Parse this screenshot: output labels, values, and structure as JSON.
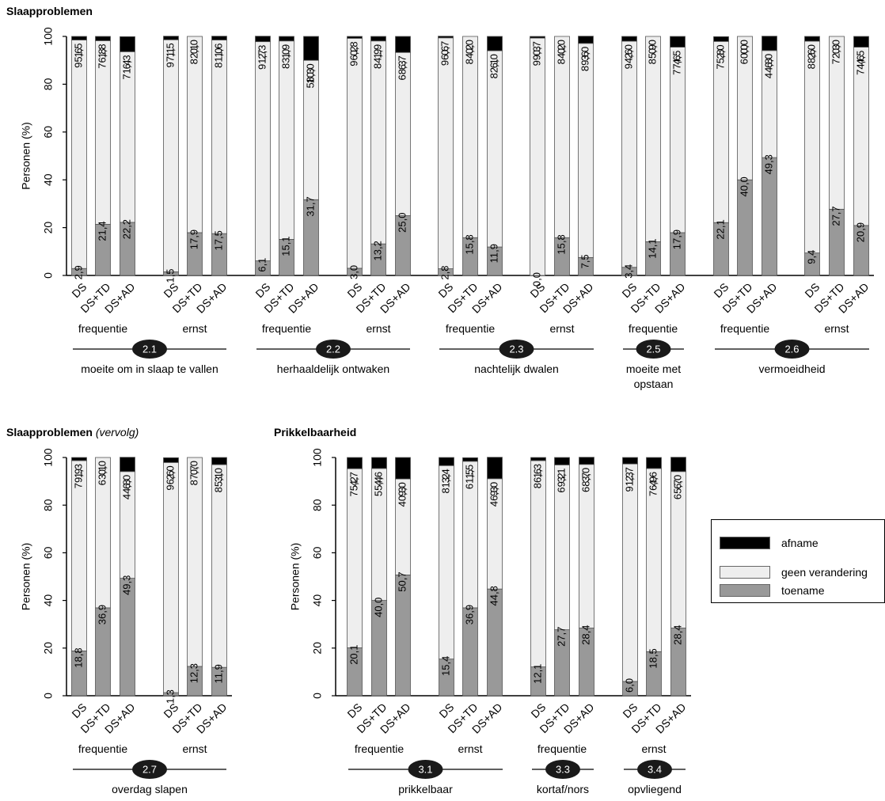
{
  "titles": {
    "top": "Slaapproblemen",
    "bottom_left": "Slaapproblemen",
    "bottom_left_suffix": "(vervolg)",
    "bottom_right": "Prikkelbaarheid"
  },
  "legend": [
    {
      "key": "afname",
      "label": "afname",
      "color": "#000000"
    },
    {
      "key": "geen",
      "label": "geen verandering",
      "color": "#eeeeee"
    },
    {
      "key": "toename",
      "label": "toename",
      "color": "#999999"
    }
  ],
  "chart_data": [
    {
      "type": "bar",
      "stacked": true,
      "title": "Slaapproblemen",
      "ylabel": "Personen (%)",
      "ylim": [
        0,
        100
      ],
      "yticks": [
        0,
        20,
        40,
        60,
        80,
        100
      ],
      "series_order": [
        "toename",
        "geen verandering",
        "afname"
      ],
      "groups": [
        {
          "label": "frequentie",
          "category": "2.1",
          "category_label": "moeite om in slaap te vallen",
          "bars": [
            {
              "x": "DS",
              "toename": 2.9,
              "geen": 95.6,
              "afname": 1.5,
              "labels": [
                "2,9",
                "95,6",
                "1,5"
              ]
            },
            {
              "x": "DS+TD",
              "toename": 21.4,
              "geen": 76.8,
              "afname": 1.8,
              "labels": [
                "21,4",
                "76,8",
                "1,8"
              ]
            },
            {
              "x": "DS+AD",
              "toename": 22.2,
              "geen": 71.4,
              "afname": 6.3,
              "labels": [
                "22,2",
                "71,4",
                "6,3"
              ]
            }
          ]
        },
        {
          "label": "ernst",
          "category": "2.1",
          "bars": [
            {
              "x": "DS",
              "toename": 1.5,
              "geen": 97.1,
              "afname": 1.5,
              "labels": [
                "1,5",
                "97,1",
                "1,5"
              ]
            },
            {
              "x": "DS+TD",
              "toename": 17.9,
              "geen": 82.1,
              "afname": 0.0,
              "labels": [
                "17,9",
                "82,1",
                "0,0"
              ]
            },
            {
              "x": "DS+AD",
              "toename": 17.5,
              "geen": 81.0,
              "afname": 1.6,
              "labels": [
                "17,5",
                "81,0",
                "1,6"
              ]
            }
          ]
        },
        {
          "label": "frequentie",
          "category": "2.2",
          "category_label": "herhaaldelijk ontwaken",
          "bars": [
            {
              "x": "DS",
              "toename": 6.1,
              "geen": 91.7,
              "afname": 2.3,
              "labels": [
                "6,1",
                "91,7",
                "2,3"
              ]
            },
            {
              "x": "DS+TD",
              "toename": 15.1,
              "geen": 83.0,
              "afname": 1.9,
              "labels": [
                "15,1",
                "83,0",
                "1,9"
              ]
            },
            {
              "x": "DS+AD",
              "toename": 31.7,
              "geen": 58.3,
              "afname": 10.0,
              "labels": [
                "31,7",
                "58,3",
                "10,0"
              ]
            }
          ]
        },
        {
          "label": "ernst",
          "category": "2.2",
          "bars": [
            {
              "x": "DS",
              "toename": 3.0,
              "geen": 96.2,
              "afname": 0.8,
              "labels": [
                "3,0",
                "96,2",
                "0,8"
              ]
            },
            {
              "x": "DS+TD",
              "toename": 13.2,
              "geen": 84.9,
              "afname": 1.9,
              "labels": [
                "13,2",
                "84,9",
                "1,9"
              ]
            },
            {
              "x": "DS+AD",
              "toename": 25.0,
              "geen": 68.3,
              "afname": 6.7,
              "labels": [
                "25,0",
                "68,3",
                "6,7"
              ]
            }
          ]
        },
        {
          "label": "frequentie",
          "category": "2.3",
          "category_label": "nachtelijk dwalen",
          "bars": [
            {
              "x": "DS",
              "toename": 2.8,
              "geen": 96.6,
              "afname": 0.7,
              "labels": [
                "2,8",
                "96,6",
                "0,7"
              ]
            },
            {
              "x": "DS+TD",
              "toename": 15.8,
              "geen": 84.2,
              "afname": 0.0,
              "labels": [
                "15,8",
                "84,2",
                "0,0"
              ]
            },
            {
              "x": "DS+AD",
              "toename": 11.9,
              "geen": 82.1,
              "afname": 6.0,
              "labels": [
                "11,9",
                "82,1",
                "6,0"
              ]
            }
          ]
        },
        {
          "label": "ernst",
          "category": "2.3",
          "bars": [
            {
              "x": "DS",
              "toename": 0.0,
              "geen": 99.3,
              "afname": 0.7,
              "labels": [
                "0,0",
                "99,3",
                "0,7"
              ]
            },
            {
              "x": "DS+TD",
              "toename": 15.8,
              "geen": 84.2,
              "afname": 0.0,
              "labels": [
                "15,8",
                "84,2",
                "0,0"
              ]
            },
            {
              "x": "DS+AD",
              "toename": 7.5,
              "geen": 89.6,
              "afname": 3.0,
              "labels": [
                "7,5",
                "89,6",
                "3,0"
              ]
            }
          ]
        },
        {
          "label": "frequentie",
          "category": "2.5",
          "category_label": "moeite met opstaan",
          "bars": [
            {
              "x": "DS",
              "toename": 3.4,
              "geen": 94.6,
              "afname": 2.0,
              "labels": [
                "3,4",
                "94,6",
                "2,0"
              ]
            },
            {
              "x": "DS+TD",
              "toename": 14.1,
              "geen": 85.9,
              "afname": 0.0,
              "labels": [
                "14,1",
                "85,9",
                "0,0"
              ]
            },
            {
              "x": "DS+AD",
              "toename": 17.9,
              "geen": 77.6,
              "afname": 4.5,
              "labels": [
                "17,9",
                "77,6",
                "4,5"
              ]
            }
          ]
        },
        {
          "label": "frequentie",
          "category": "2.6",
          "category_label": "vermoeidheid",
          "bars": [
            {
              "x": "DS",
              "toename": 22.1,
              "geen": 75.8,
              "afname": 2.0,
              "labels": [
                "22,1",
                "75,8",
                "2,0"
              ]
            },
            {
              "x": "DS+TD",
              "toename": 40.0,
              "geen": 60.0,
              "afname": 0.0,
              "labels": [
                "40,0",
                "60,0",
                "0,0"
              ]
            },
            {
              "x": "DS+AD",
              "toename": 49.3,
              "geen": 44.8,
              "afname": 6.0,
              "labels": [
                "49,3",
                "44,8",
                "6,0"
              ]
            }
          ]
        },
        {
          "label": "ernst",
          "category": "2.6",
          "bars": [
            {
              "x": "DS",
              "toename": 9.4,
              "geen": 88.6,
              "afname": 2.0,
              "labels": [
                "9,4",
                "88,6",
                "2,0"
              ]
            },
            {
              "x": "DS+TD",
              "toename": 27.7,
              "geen": 72.3,
              "afname": 0.0,
              "labels": [
                "27,7",
                "72,3",
                "0,0"
              ]
            },
            {
              "x": "DS+AD",
              "toename": 20.9,
              "geen": 74.6,
              "afname": 4.5,
              "labels": [
                "20,9",
                "74,6",
                "4,5"
              ]
            }
          ]
        }
      ]
    },
    {
      "type": "bar",
      "stacked": true,
      "title": "Slaapproblemen (vervolg)",
      "ylabel": "Personen (%)",
      "ylim": [
        0,
        100
      ],
      "yticks": [
        0,
        20,
        40,
        60,
        80,
        100
      ],
      "groups": [
        {
          "label": "frequentie",
          "category": "2.7",
          "category_label": "overdag slapen",
          "bars": [
            {
              "x": "DS",
              "toename": 18.8,
              "geen": 79.9,
              "afname": 1.3,
              "labels": [
                "18,8",
                "79,9",
                "1,3"
              ]
            },
            {
              "x": "DS+TD",
              "toename": 36.9,
              "geen": 63.1,
              "afname": 0.0,
              "labels": [
                "36,9",
                "63,1",
                "0,0"
              ]
            },
            {
              "x": "DS+AD",
              "toename": 49.3,
              "geen": 44.8,
              "afname": 6.0,
              "labels": [
                "49,3",
                "44,8",
                "6,0"
              ]
            }
          ]
        },
        {
          "label": "ernst",
          "category": "2.7",
          "bars": [
            {
              "x": "DS",
              "toename": 1.3,
              "geen": 96.6,
              "afname": 2.0,
              "labels": [
                "1,3",
                "96,6",
                "2,0"
              ]
            },
            {
              "x": "DS+TD",
              "toename": 12.3,
              "geen": 87.7,
              "afname": 0.0,
              "labels": [
                "12,3",
                "87,7",
                "0,0"
              ]
            },
            {
              "x": "DS+AD",
              "toename": 11.9,
              "geen": 85.1,
              "afname": 3.0,
              "labels": [
                "11,9",
                "85,1",
                "3,0"
              ]
            }
          ]
        }
      ]
    },
    {
      "type": "bar",
      "stacked": true,
      "title": "Prikkelbaarheid",
      "ylabel": "Personen (%)",
      "ylim": [
        0,
        100
      ],
      "yticks": [
        0,
        20,
        40,
        60,
        80,
        100
      ],
      "groups": [
        {
          "label": "frequentie",
          "category": "3.1",
          "category_label": "prikkelbaar",
          "bars": [
            {
              "x": "DS",
              "toename": 20.1,
              "geen": 75.2,
              "afname": 4.7,
              "labels": [
                "20,1",
                "75,2",
                "4,7"
              ]
            },
            {
              "x": "DS+TD",
              "toename": 40.0,
              "geen": 55.4,
              "afname": 4.6,
              "labels": [
                "40,0",
                "55,4",
                "4,6"
              ]
            },
            {
              "x": "DS+AD",
              "toename": 50.7,
              "geen": 40.3,
              "afname": 9.0,
              "labels": [
                "50,7",
                "40,3",
                "9,0"
              ]
            }
          ]
        },
        {
          "label": "ernst",
          "category": "3.1",
          "bars": [
            {
              "x": "DS",
              "toename": 15.4,
              "geen": 81.2,
              "afname": 3.4,
              "labels": [
                "15,4",
                "81,2",
                "3,4"
              ]
            },
            {
              "x": "DS+TD",
              "toename": 36.9,
              "geen": 61.5,
              "afname": 1.5,
              "labels": [
                "36,9",
                "61,5",
                "1,5"
              ]
            },
            {
              "x": "DS+AD",
              "toename": 44.8,
              "geen": 46.3,
              "afname": 9.0,
              "labels": [
                "44,8",
                "46,3",
                "9,0"
              ]
            }
          ]
        },
        {
          "label": "frequentie",
          "category": "3.3",
          "category_label": "kortaf/nors",
          "bars": [
            {
              "x": "DS",
              "toename": 12.1,
              "geen": 86.6,
              "afname": 1.3,
              "labels": [
                "12,1",
                "86,6",
                "1,3"
              ]
            },
            {
              "x": "DS+TD",
              "toename": 27.7,
              "geen": 69.2,
              "afname": 3.1,
              "labels": [
                "27,7",
                "69,2",
                "3,1"
              ]
            },
            {
              "x": "DS+AD",
              "toename": 28.4,
              "geen": 68.7,
              "afname": 3.0,
              "labels": [
                "28,4",
                "68,7",
                "3,0"
              ]
            }
          ]
        },
        {
          "label": "ernst",
          "category": "3.4",
          "category_label": "opvliegend",
          "bars": [
            {
              "x": "DS",
              "toename": 6.0,
              "geen": 91.3,
              "afname": 2.7,
              "labels": [
                "6,0",
                "91,3",
                "2,7"
              ]
            },
            {
              "x": "DS+TD",
              "toename": 18.5,
              "geen": 76.9,
              "afname": 4.6,
              "labels": [
                "18,5",
                "76,9",
                "4,6"
              ]
            },
            {
              "x": "DS+AD",
              "toename": 28.4,
              "geen": 65.7,
              "afname": 6.0,
              "labels": [
                "28,4",
                "65,7",
                "6,0"
              ]
            }
          ]
        }
      ]
    }
  ]
}
